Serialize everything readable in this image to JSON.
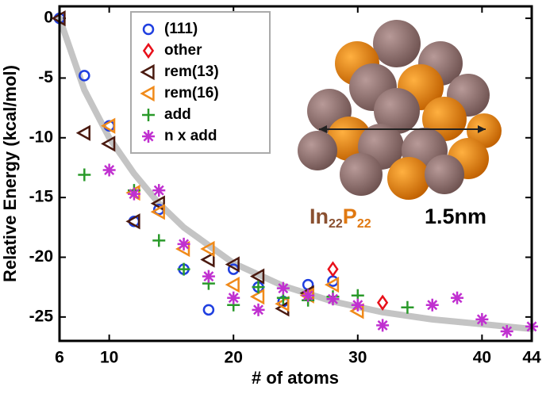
{
  "chart_data": {
    "type": "scatter",
    "x_label": "# of atoms",
    "y_label": "Relative Energy (kcal/mol)",
    "xlim": [
      6,
      44
    ],
    "xticks": [
      6,
      10,
      20,
      30,
      40,
      44
    ],
    "ylim": [
      -27,
      1
    ],
    "yticks": [
      0,
      -5,
      -10,
      -15,
      -20,
      -25
    ],
    "legend": "top-left",
    "series": [
      {
        "name": "(111)",
        "color": "#1f3fe0",
        "marker": "circle",
        "x": [
          6,
          8,
          10,
          12,
          14,
          16,
          18,
          20,
          22,
          24,
          26,
          28
        ],
        "values": [
          0,
          -4.8,
          -9,
          -17,
          -16,
          -21,
          -24.4,
          -21,
          -22.5,
          -23.7,
          -22.3,
          -22
        ]
      },
      {
        "name": "other",
        "color": "#e8101a",
        "marker": "diamond",
        "x": [
          28,
          32
        ],
        "values": [
          -21,
          -23.8
        ]
      },
      {
        "name": "rem(13)",
        "color": "#4a1a10",
        "marker": "triangle-left",
        "x": [
          6,
          8,
          10,
          12,
          14,
          18,
          20,
          22,
          24,
          26
        ],
        "values": [
          0,
          -9.6,
          -10.5,
          -17,
          -15.5,
          -20.2,
          -20.6,
          -21.6,
          -24.3,
          -23
        ]
      },
      {
        "name": "rem(16)",
        "color": "#f08a1a",
        "marker": "triangle-left",
        "x": [
          10,
          12,
          14,
          16,
          18,
          20,
          22,
          24,
          26,
          28,
          30
        ],
        "values": [
          -9,
          -14.6,
          -16.2,
          -19.3,
          -19.3,
          -22.3,
          -23.3,
          -23.9,
          -23.2,
          -22.3,
          -24.5
        ]
      },
      {
        "name": "add",
        "color": "#2a9a2a",
        "marker": "plus",
        "x": [
          8,
          12,
          14,
          16,
          18,
          20,
          22,
          24,
          26,
          28,
          30,
          34
        ],
        "values": [
          -13.1,
          -14.4,
          -18.6,
          -21,
          -22.2,
          -24,
          -22.5,
          -23.4,
          -23.6,
          -23.3,
          -23.2,
          -24.2
        ]
      },
      {
        "name": "n x add",
        "color": "#c030d0",
        "marker": "star",
        "x": [
          10,
          12,
          14,
          16,
          18,
          20,
          22,
          24,
          26,
          28,
          30,
          32,
          36,
          38,
          40,
          42,
          44
        ],
        "values": [
          -12.7,
          -14.7,
          -14.4,
          -18.9,
          -21.6,
          -23.4,
          -24.4,
          -22.6,
          -23.2,
          -23.5,
          -24,
          -25.7,
          -24,
          -23.4,
          -25.2,
          -26.2,
          -25.8
        ]
      }
    ],
    "fit_curve": {
      "color": "#c4c4c4",
      "x": [
        6,
        8,
        10,
        12,
        14,
        16,
        20,
        24,
        28,
        32,
        36,
        40,
        44
      ],
      "values": [
        0,
        -6,
        -10,
        -13,
        -15.5,
        -17.5,
        -20.5,
        -22.4,
        -23.7,
        -24.6,
        -25.2,
        -25.6,
        -26
      ]
    },
    "inset": {
      "formula": [
        {
          "text": "In",
          "sub": "22"
        },
        {
          "text": "P",
          "sub": "22"
        }
      ],
      "size": "1.5nm"
    }
  }
}
